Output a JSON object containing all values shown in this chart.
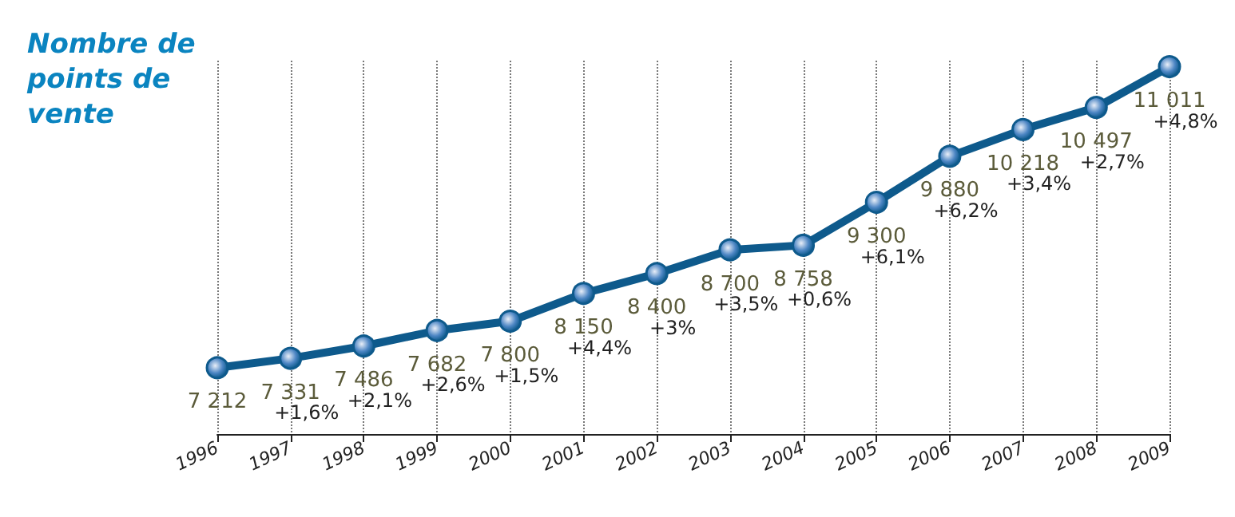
{
  "chart_data": {
    "type": "line",
    "title": "Nombre de points de vente",
    "categories": [
      "1996",
      "1997",
      "1998",
      "1999",
      "2000",
      "2001",
      "2002",
      "2003",
      "2004",
      "2005",
      "2006",
      "2007",
      "2008",
      "2009"
    ],
    "series": [
      {
        "color": "#0e5a8c",
        "values": [
          7212,
          7331,
          7486,
          7682,
          7800,
          8150,
          8400,
          8700,
          8758,
          9300,
          9880,
          10218,
          10497,
          11011
        ],
        "value_labels": [
          "7 212",
          "7 331",
          "7 486",
          "7 682",
          "7 800",
          "8 150",
          "8 400",
          "8 700",
          "8 758",
          "9 300",
          "9 880",
          "10 218",
          "10 497",
          "11 011"
        ]
      }
    ],
    "annotations": [
      {
        "text": "+1,6%",
        "x": "1997",
        "y": 7331
      },
      {
        "text": "+2,1%",
        "x": "1998",
        "y": 7486
      },
      {
        "text": "+2,6%",
        "x": "1999",
        "y": 7682
      },
      {
        "text": "+1,5%",
        "x": "2000",
        "y": 7800
      },
      {
        "text": "+4,4%",
        "x": "2001",
        "y": 8150
      },
      {
        "text": "+3%",
        "x": "2002",
        "y": 8400
      },
      {
        "text": "+3,5%",
        "x": "2003",
        "y": 8700
      },
      {
        "text": "+0,6%",
        "x": "2004",
        "y": 8758
      },
      {
        "text": "+6,1%",
        "x": "2005",
        "y": 9300
      },
      {
        "text": "+6,2%",
        "x": "2006",
        "y": 9880
      },
      {
        "text": "+3,4%",
        "x": "2007",
        "y": 10218
      },
      {
        "text": "+2,7%",
        "x": "2008",
        "y": 10497
      },
      {
        "text": "+4,8%",
        "x": "2009",
        "y": 11011
      }
    ],
    "grid": "x",
    "marker": "circle",
    "line_style": "solid",
    "tick_labels": "x"
  }
}
